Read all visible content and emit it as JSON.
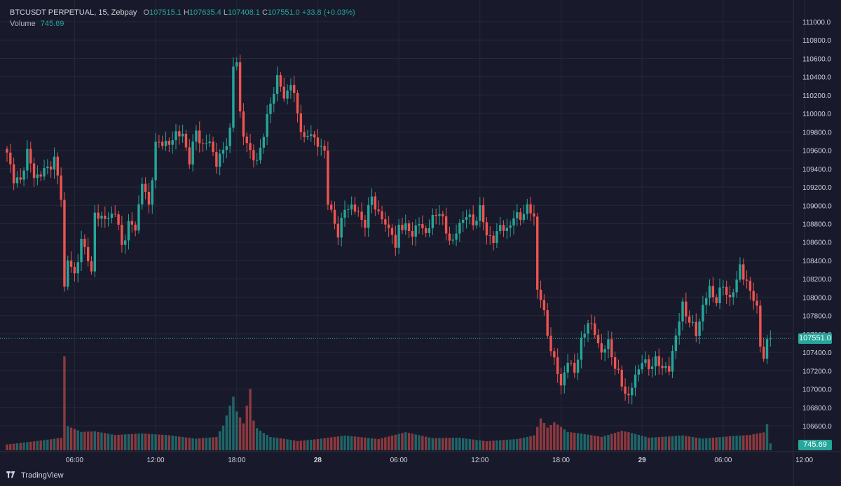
{
  "header": {
    "symbol_line": "BTCUSDT PERPETUAL, 15, Zebpay",
    "open_label": "O",
    "open": "107515.1",
    "high_label": "H",
    "high": "107635.4",
    "low_label": "L",
    "low": "107408.1",
    "close_label": "C",
    "close": "107551.0",
    "change": "+33.8 (+0.03%)",
    "volume_label": "Volume",
    "volume_value": "745.69"
  },
  "footer": {
    "brand": "TradingView"
  },
  "colors": {
    "background": "#181a2b",
    "up": "#26a69a",
    "down": "#ef5350",
    "grid": "#242838",
    "text": "#d1d4dc"
  },
  "chart_data": {
    "type": "candlestick",
    "ylim": [
      106500,
      111000
    ],
    "price_ticks": [
      111000,
      110800,
      110600,
      110400,
      110200,
      110000,
      109800,
      109600,
      109400,
      109200,
      109000,
      108800,
      108600,
      108400,
      108200,
      108000,
      107800,
      107600,
      107400,
      107200,
      107000,
      106800,
      106600
    ],
    "price_tick_labels": [
      "111000.0",
      "110800.0",
      "110600.0",
      "110400.0",
      "110200.0",
      "110000.0",
      "109800.0",
      "109600.0",
      "109400.0",
      "109200.0",
      "109000.0",
      "108800.0",
      "108600.0",
      "108400.0",
      "108200.0",
      "108000.0",
      "107800.0",
      "107600.0",
      "107400.0",
      "107200.0",
      "107000.0",
      "106800.0",
      "106600.0"
    ],
    "current_price": 107551.0,
    "current_price_label": "107551.0",
    "current_volume_label": "745.69",
    "time_labels": [
      "06:00",
      "12:00",
      "18:00",
      "28",
      "06:00",
      "12:00",
      "18:00",
      "29",
      "06:00",
      "12:00"
    ],
    "time_label_bars": [
      20,
      44,
      68,
      92,
      116,
      140,
      164,
      188,
      212,
      236
    ],
    "waypoints": [
      [
        0,
        109550
      ],
      [
        2,
        109300
      ],
      [
        4,
        109250
      ],
      [
        6,
        109600
      ],
      [
        8,
        109300
      ],
      [
        10,
        109350
      ],
      [
        12,
        109400
      ],
      [
        14,
        109500
      ],
      [
        16,
        109100
      ],
      [
        17,
        108100
      ],
      [
        18,
        108400
      ],
      [
        20,
        108250
      ],
      [
        22,
        108600
      ],
      [
        24,
        108450
      ],
      [
        25,
        108250
      ],
      [
        26,
        108900
      ],
      [
        30,
        108850
      ],
      [
        32,
        108950
      ],
      [
        34,
        108550
      ],
      [
        36,
        108800
      ],
      [
        38,
        108750
      ],
      [
        40,
        109250
      ],
      [
        42,
        109000
      ],
      [
        44,
        109650
      ],
      [
        46,
        109700
      ],
      [
        48,
        109650
      ],
      [
        50,
        109800
      ],
      [
        52,
        109750
      ],
      [
        54,
        109500
      ],
      [
        56,
        109800
      ],
      [
        58,
        109650
      ],
      [
        60,
        109700
      ],
      [
        62,
        109450
      ],
      [
        64,
        109600
      ],
      [
        66,
        109800
      ],
      [
        67,
        110500
      ],
      [
        68,
        110600
      ],
      [
        69,
        110000
      ],
      [
        70,
        109750
      ],
      [
        72,
        109600
      ],
      [
        74,
        109450
      ],
      [
        76,
        109800
      ],
      [
        78,
        110100
      ],
      [
        80,
        110400
      ],
      [
        81,
        110300
      ],
      [
        82,
        110150
      ],
      [
        84,
        110350
      ],
      [
        86,
        110000
      ],
      [
        88,
        109700
      ],
      [
        90,
        109800
      ],
      [
        92,
        109650
      ],
      [
        94,
        109600
      ],
      [
        95,
        109050
      ],
      [
        96,
        108900
      ],
      [
        98,
        108700
      ],
      [
        100,
        108950
      ],
      [
        102,
        109000
      ],
      [
        104,
        108900
      ],
      [
        106,
        108800
      ],
      [
        108,
        109100
      ],
      [
        110,
        108900
      ],
      [
        112,
        108800
      ],
      [
        114,
        108700
      ],
      [
        115,
        108500
      ],
      [
        116,
        108800
      ],
      [
        118,
        108750
      ],
      [
        120,
        108700
      ],
      [
        122,
        108800
      ],
      [
        124,
        108700
      ],
      [
        126,
        108850
      ],
      [
        128,
        108950
      ],
      [
        130,
        108700
      ],
      [
        132,
        108600
      ],
      [
        134,
        108800
      ],
      [
        136,
        108900
      ],
      [
        138,
        108800
      ],
      [
        140,
        108950
      ],
      [
        142,
        108700
      ],
      [
        144,
        108600
      ],
      [
        146,
        108800
      ],
      [
        148,
        108700
      ],
      [
        150,
        108900
      ],
      [
        152,
        108850
      ],
      [
        154,
        109000
      ],
      [
        156,
        108850
      ],
      [
        157,
        108100
      ],
      [
        158,
        108000
      ],
      [
        160,
        107600
      ],
      [
        162,
        107300
      ],
      [
        164,
        107050
      ],
      [
        166,
        107300
      ],
      [
        168,
        107200
      ],
      [
        170,
        107500
      ],
      [
        172,
        107750
      ],
      [
        174,
        107600
      ],
      [
        176,
        107400
      ],
      [
        178,
        107500
      ],
      [
        180,
        107250
      ],
      [
        182,
        107050
      ],
      [
        184,
        106900
      ],
      [
        186,
        107150
      ],
      [
        188,
        107300
      ],
      [
        190,
        107250
      ],
      [
        192,
        107300
      ],
      [
        194,
        107250
      ],
      [
        196,
        107200
      ],
      [
        198,
        107600
      ],
      [
        200,
        107900
      ],
      [
        202,
        107750
      ],
      [
        204,
        107600
      ],
      [
        206,
        107900
      ],
      [
        208,
        108100
      ],
      [
        210,
        107950
      ],
      [
        212,
        108150
      ],
      [
        214,
        107950
      ],
      [
        216,
        108200
      ],
      [
        217,
        108350
      ],
      [
        218,
        108200
      ],
      [
        220,
        108100
      ],
      [
        222,
        107850
      ],
      [
        223,
        107500
      ],
      [
        224,
        107350
      ],
      [
        225,
        107500
      ],
      [
        226,
        107551
      ]
    ],
    "volume_waypoints": [
      [
        0,
        12
      ],
      [
        8,
        16
      ],
      [
        16,
        20
      ],
      [
        17,
        150
      ],
      [
        18,
        38
      ],
      [
        22,
        28
      ],
      [
        26,
        28
      ],
      [
        32,
        22
      ],
      [
        40,
        24
      ],
      [
        48,
        22
      ],
      [
        56,
        18
      ],
      [
        62,
        22
      ],
      [
        64,
        42
      ],
      [
        66,
        78
      ],
      [
        67,
        95
      ],
      [
        68,
        70
      ],
      [
        70,
        50
      ],
      [
        72,
        118
      ],
      [
        73,
        58
      ],
      [
        74,
        44
      ],
      [
        78,
        26
      ],
      [
        86,
        16
      ],
      [
        92,
        18
      ],
      [
        100,
        22
      ],
      [
        110,
        16
      ],
      [
        118,
        26
      ],
      [
        126,
        18
      ],
      [
        134,
        20
      ],
      [
        142,
        16
      ],
      [
        150,
        22
      ],
      [
        156,
        28
      ],
      [
        158,
        58
      ],
      [
        160,
        40
      ],
      [
        162,
        48
      ],
      [
        166,
        30
      ],
      [
        170,
        26
      ],
      [
        176,
        20
      ],
      [
        182,
        28
      ],
      [
        184,
        26
      ],
      [
        190,
        18
      ],
      [
        196,
        20
      ],
      [
        200,
        22
      ],
      [
        206,
        18
      ],
      [
        212,
        22
      ],
      [
        220,
        28
      ],
      [
        224,
        35
      ],
      [
        225,
        52
      ],
      [
        226,
        14
      ]
    ],
    "volume_max": 160
  }
}
